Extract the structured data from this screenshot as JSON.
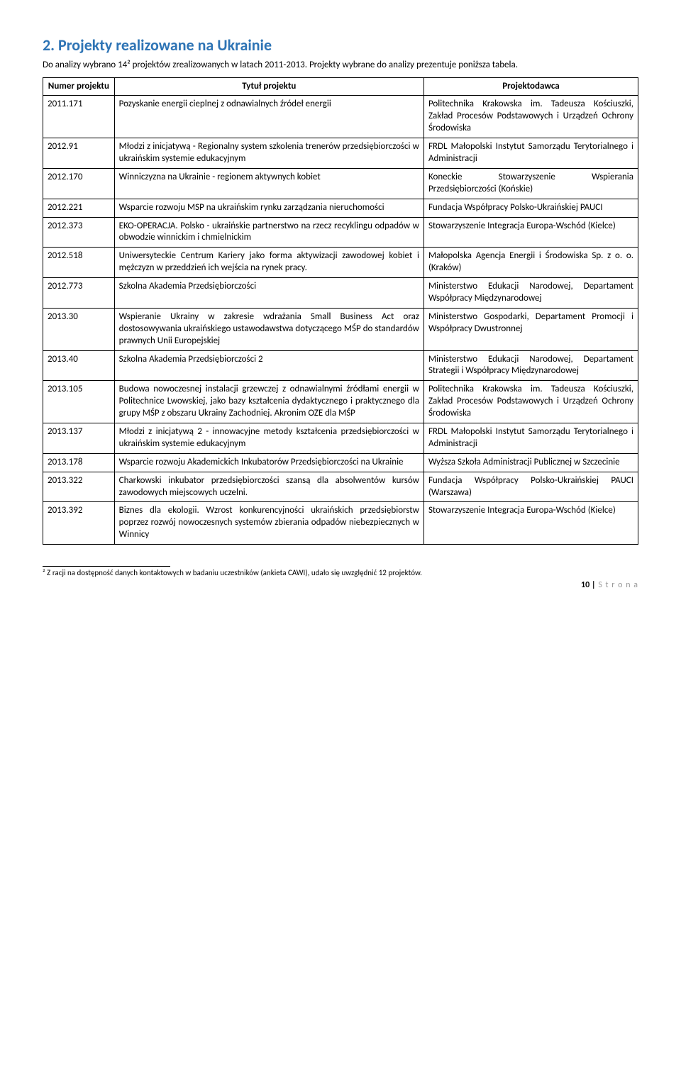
{
  "heading": "2. Projekty realizowane na Ukrainie",
  "intro": "Do analizy wybrano 14² projektów zrealizowanych w latach 2011-2013. Projekty wybrane do analizy prezentuje poniższa tabela.",
  "table": {
    "headers": {
      "num": "Numer projektu",
      "title": "Tytuł projektu",
      "org": "Projektodawca"
    },
    "rows": [
      {
        "num": "2011.171",
        "title": "Pozyskanie energii cieplnej z odnawialnych źródeł energii",
        "org": "Politechnika Krakowska im. Tadeusza Kościuszki, Zakład Procesów Podstawowych i Urządzeń Ochrony Środowiska"
      },
      {
        "num": "2012.91",
        "title": "Młodzi z inicjatywą - Regionalny system szkolenia trenerów przedsiębiorczości w ukraińskim systemie edukacyjnym",
        "org": "FRDL Małopolski Instytut Samorządu Terytorialnego i Administracji"
      },
      {
        "num": "2012.170",
        "title": "Winniczyzna na Ukrainie - regionem aktywnych kobiet",
        "org": "Koneckie Stowarzyszenie Wspierania Przedsiębiorczości (Końskie)"
      },
      {
        "num": "2012.221",
        "title": "Wsparcie rozwoju MSP na ukraińskim rynku zarządzania nieruchomości",
        "org": "Fundacja Współpracy Polsko-Ukraińskiej PAUCI"
      },
      {
        "num": "2012.373",
        "title": "EKO-OPERACJA. Polsko - ukraińskie partnerstwo na rzecz recyklingu odpadów w obwodzie winnickim i chmielnickim",
        "org": "Stowarzyszenie Integracja Europa-Wschód (Kielce)"
      },
      {
        "num": "2012.518",
        "title": "Uniwersyteckie Centrum Kariery jako forma aktywizacji zawodowej kobiet i mężczyzn w przeddzień ich wejścia na rynek pracy.",
        "org": "Małopolska Agencja Energii i Środowiska Sp. z o. o. (Kraków)"
      },
      {
        "num": "2012.773",
        "title": "Szkolna Akademia Przedsiębiorczości",
        "org": "Ministerstwo Edukacji Narodowej, Departament Współpracy Międzynarodowej"
      },
      {
        "num": "2013.30",
        "title": "Wspieranie Ukrainy w zakresie wdrażania Small Business Act oraz dostosowywania ukraińskiego ustawodawstwa dotyczącego MŚP do standardów prawnych Unii Europejskiej",
        "org": "Ministerstwo Gospodarki, Departament Promocji i Współpracy Dwustronnej"
      },
      {
        "num": "2013.40",
        "title": "Szkolna Akademia Przedsiębiorczości 2",
        "org": "Ministerstwo Edukacji Narodowej, Departament Strategii i Współpracy Międzynarodowej"
      },
      {
        "num": "2013.105",
        "title": "Budowa nowoczesnej instalacji grzewczej z odnawialnymi źródłami energii w Politechnice Lwowskiej, jako bazy kształcenia dydaktycznego i praktycznego dla grupy MŚP z obszaru Ukrainy Zachodniej. Akronim OZE dla MŚP",
        "org": "Politechnika Krakowska im. Tadeusza Kościuszki, Zakład Procesów Podstawowych i Urządzeń Ochrony Środowiska"
      },
      {
        "num": "2013.137",
        "title": "Młodzi z inicjatywą 2 - innowacyjne metody kształcenia przedsiębiorczości w ukraińskim systemie edukacyjnym",
        "org": "FRDL Małopolski Instytut Samorządu Terytorialnego i Administracji"
      },
      {
        "num": "2013.178",
        "title": "Wsparcie rozwoju Akademickich Inkubatorów Przedsiębiorczości na Ukrainie",
        "org": "Wyższa Szkoła Administracji Publicznej w Szczecinie"
      },
      {
        "num": "2013.322",
        "title": "Charkowski inkubator przedsiębiorczości szansą dla absolwentów kursów zawodowych miejscowych uczelni.",
        "org": "Fundacja Współpracy Polsko-Ukraińskiej PAUCI (Warszawa)"
      },
      {
        "num": "2013.392",
        "title": "Biznes dla ekologii. Wzrost konkurencyjności ukraińskich przedsiębiorstw poprzez rozwój nowoczesnych systemów zbierania odpadów niebezpiecznych w Winnicy",
        "org": "Stowarzyszenie Integracja Europa-Wschód (Kielce)"
      }
    ]
  },
  "footnote": "² Z racji na dostępność danych kontaktowych w badaniu uczestników (ankieta CAWI), udało się uwzględnić 12 projektów.",
  "page_number": "10 |",
  "page_word": "S t r o n a"
}
